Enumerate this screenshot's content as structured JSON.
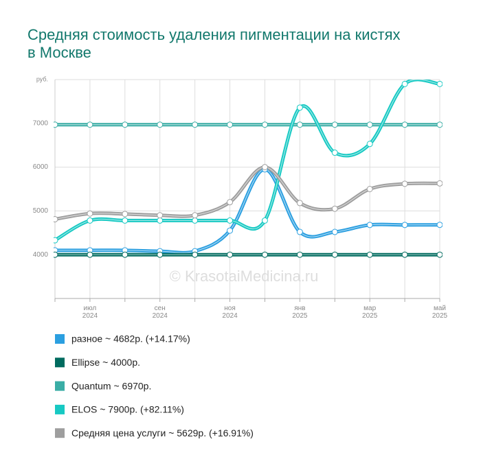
{
  "chart_data": {
    "type": "line",
    "title": "Средняя стоимость удаления пигментации на кистях в Москве",
    "watermark": "© KrasotaiMedicina.ru",
    "categories": [
      null,
      "июл 2024",
      null,
      "сен 2024",
      null,
      "ноя 2024",
      null,
      "янв 2025",
      null,
      "мар 2025",
      null,
      "май 2025"
    ],
    "ylim": [
      3000,
      8000
    ],
    "yticks": [
      4000,
      5000,
      6000,
      7000,
      {
        "value": 8000,
        "label": "руб."
      }
    ],
    "grid": true,
    "series": [
      {
        "name": "разное ~ 4682р. (+14.17%)",
        "color": "#2b9fe0",
        "values": [
          4100,
          4100,
          4100,
          4080,
          4080,
          4550,
          5950,
          4520,
          4520,
          4680,
          4680,
          4682
        ]
      },
      {
        "name": "Ellipse ~ 4000р.",
        "color": "#006b5f",
        "values": [
          4000,
          4000,
          4000,
          4000,
          4000,
          4000,
          4000,
          4000,
          4000,
          4000,
          4000,
          4000
        ]
      },
      {
        "name": "Quantum ~ 6970р.",
        "color": "#3aada5",
        "values": [
          6970,
          6970,
          6970,
          6970,
          6970,
          6970,
          6970,
          6970,
          6970,
          6970,
          6970,
          6970
        ]
      },
      {
        "name": "ELOS ~ 7900р. (+82.11%)",
        "color": "#17c9c3",
        "values": [
          4330,
          4780,
          4780,
          4780,
          4780,
          4780,
          4780,
          7360,
          6330,
          6530,
          7900,
          7900
        ]
      },
      {
        "name": "Средняя цена услуги ~ 5629р. (+16.91%)",
        "color": "#9e9e9e",
        "values": [
          4810,
          4940,
          4930,
          4900,
          4900,
          5200,
          6000,
          5180,
          5050,
          5500,
          5620,
          5629
        ]
      }
    ]
  }
}
